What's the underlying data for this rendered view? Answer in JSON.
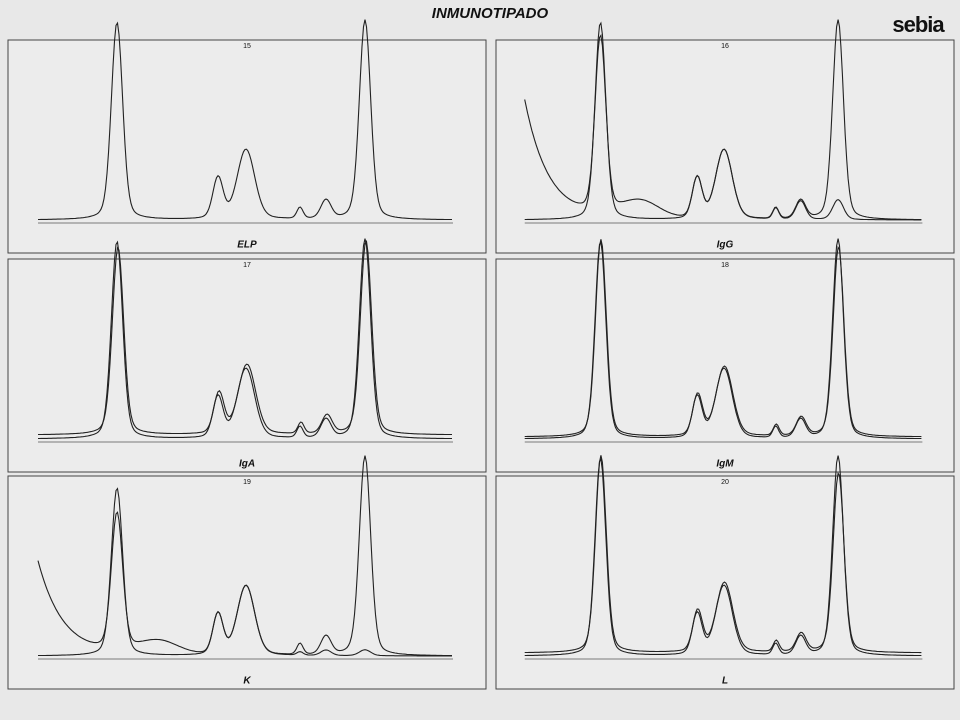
{
  "header": {
    "title": "INMUNOTIPADO",
    "logo": "sebia"
  },
  "panels": [
    {
      "number": "15",
      "label": "ELP"
    },
    {
      "number": "16",
      "label": "IgG"
    },
    {
      "number": "17",
      "label": "IgA"
    },
    {
      "number": "18",
      "label": "IgM"
    },
    {
      "number": "19",
      "label": "K"
    },
    {
      "number": "20",
      "label": "L"
    }
  ]
}
